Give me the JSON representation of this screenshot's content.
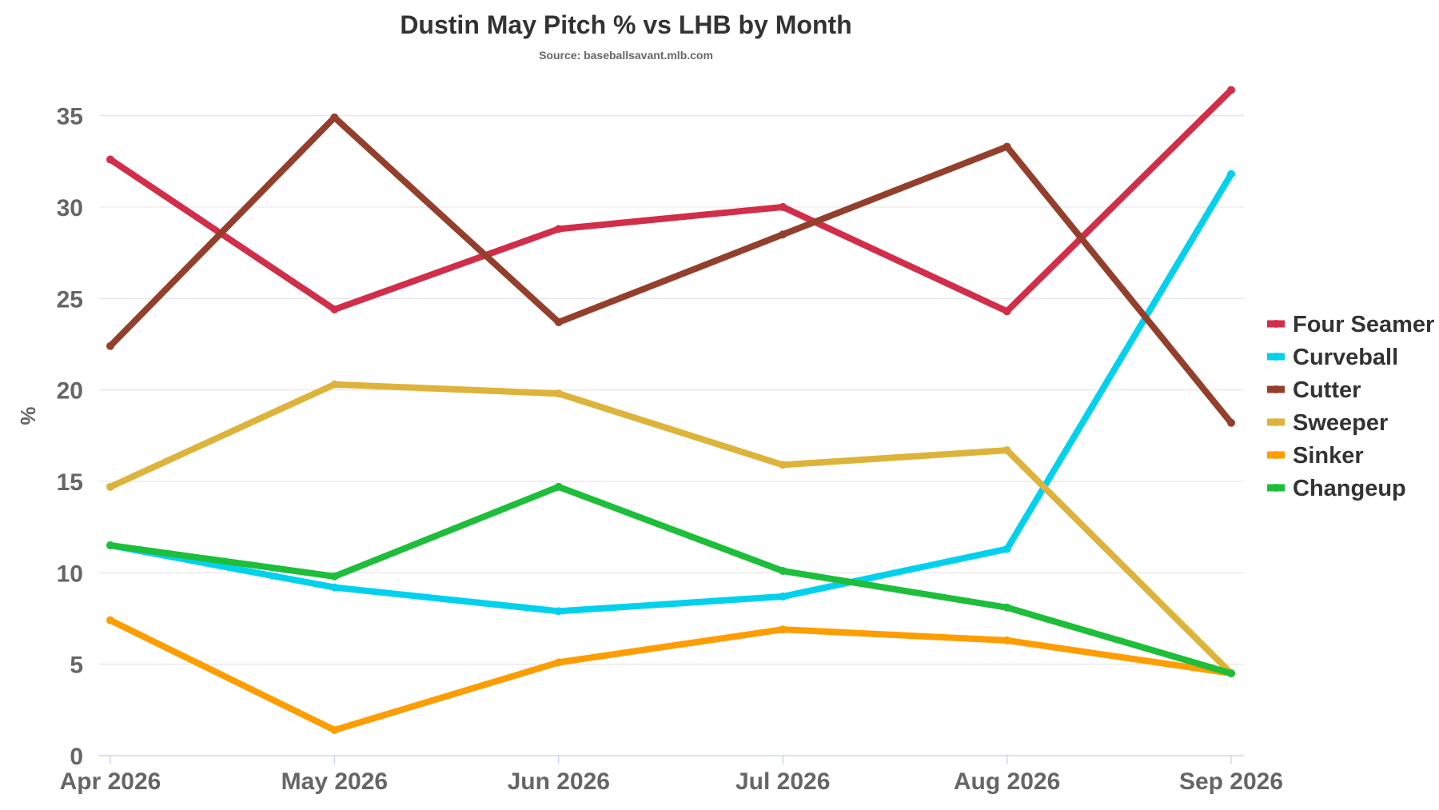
{
  "chart_data": {
    "type": "line",
    "title": "Dustin May Pitch % vs LHB by Month",
    "subtitle": "Source: baseballsavant.mlb.com",
    "xlabel": "",
    "ylabel": "%",
    "categories": [
      "Apr 2026",
      "May 2026",
      "Jun 2026",
      "Jul 2026",
      "Aug 2026",
      "Sep 2026"
    ],
    "ylim": [
      0,
      35
    ],
    "yticks": [
      0,
      5,
      10,
      15,
      20,
      25,
      30,
      35
    ],
    "grid": true,
    "legend_position": "right",
    "series": [
      {
        "name": "Four Seamer",
        "color": "#d22d49",
        "values": [
          32.6,
          24.4,
          28.8,
          30.0,
          24.3,
          36.4
        ]
      },
      {
        "name": "Curveball",
        "color": "#00d1ed",
        "values": [
          11.5,
          9.2,
          7.9,
          8.7,
          11.3,
          31.8
        ]
      },
      {
        "name": "Cutter",
        "color": "#933f2c",
        "values": [
          22.4,
          34.9,
          23.7,
          28.5,
          33.3,
          18.2
        ]
      },
      {
        "name": "Sweeper",
        "color": "#ddb33a",
        "values": [
          14.7,
          20.3,
          19.8,
          15.9,
          16.7,
          4.5
        ]
      },
      {
        "name": "Sinker",
        "color": "#fe9d00",
        "values": [
          7.4,
          1.4,
          5.1,
          6.9,
          6.3,
          4.5
        ]
      },
      {
        "name": "Changeup",
        "color": "#1dbe3a",
        "values": [
          11.5,
          9.8,
          14.7,
          10.1,
          8.1,
          4.5
        ]
      }
    ]
  }
}
